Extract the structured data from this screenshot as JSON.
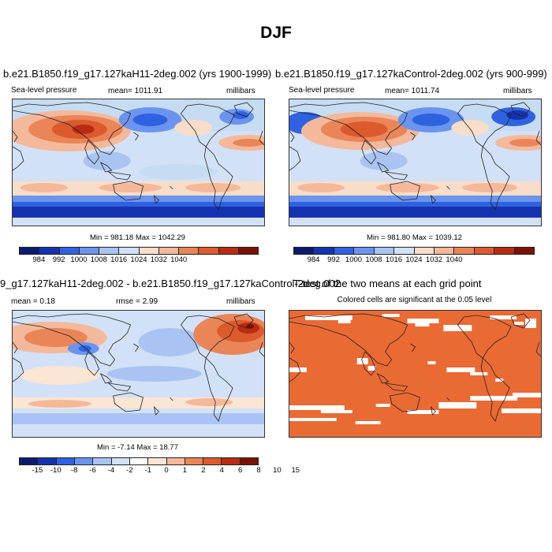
{
  "title": "DJF",
  "palette": {
    "abs": [
      "#0a1a6e",
      "#1533b0",
      "#2f62e0",
      "#6b94ee",
      "#a9c3f3",
      "#d2e1f7",
      "#f8ddc8",
      "#f4b89a",
      "#ea8558",
      "#dc5a2c",
      "#b82c12",
      "#7a1208"
    ],
    "diff": [
      "#0a1a6e",
      "#1533b0",
      "#2f62e0",
      "#6b94ee",
      "#a9c3f3",
      "#d2e1f7",
      "#ffffff",
      "#fbe5d3",
      "#f4b89a",
      "#ea8558",
      "#dc5a2c",
      "#b82c12",
      "#7a1208"
    ],
    "significant": "#ea6a34",
    "coast": "#222222"
  },
  "panels": {
    "top_left": {
      "title": "b.e21.B1850.f19_g17.127kaH11-2deg.002 (yrs 1900-1999)",
      "left_label": "Sea-level pressure",
      "center_label": "mean= 1011.91",
      "right_label": "millibars",
      "minmax": "Min = 981.18 Max = 1042.29"
    },
    "top_right": {
      "title": "b.e21.B1850.f19_g17.127kaControl-2deg.002 (yrs 900-999)",
      "left_label": "Sea-level pressure",
      "center_label": "mean= 1011.74",
      "right_label": "millibars",
      "minmax": "Min = 981.80 Max = 1039.12"
    },
    "bottom_left": {
      "title": "9_g17.127kaH11-2deg.002 - b.e21.B1850.f19_g17.127kaControl-2deg.002",
      "left_label": "mean =   0.18",
      "center_label": "rmse =   2.99",
      "right_label": "millibars",
      "minmax": "Min =  -7.14 Max =  18.77"
    },
    "bottom_right": {
      "title": "T-test of the two means at each grid point",
      "subtitle": "Colored cells are significant at the 0.05 level"
    }
  },
  "colorbars": {
    "abs_labels": [
      "984",
      "992",
      "1000",
      "1008",
      "1016",
      "1024",
      "1032",
      "1040"
    ],
    "diff_labels": [
      "-15",
      "-10",
      "-8",
      "-6",
      "-4",
      "-2",
      "-1",
      "0",
      "1",
      "2",
      "4",
      "6",
      "8",
      "10",
      "15"
    ]
  }
}
